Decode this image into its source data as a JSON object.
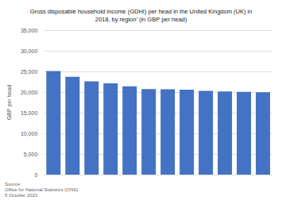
{
  "chart_data": {
    "type": "bar",
    "title": "Gross disposable household income (GDHI) per head in the United Kingdom (UK) in\n2018, by region’ (in GBP per head)",
    "ylabel": "GBP per head",
    "categories": [
      null,
      null,
      null,
      null,
      null,
      null,
      null,
      null,
      null,
      null,
      null,
      null
    ],
    "values": [
      25100,
      23700,
      22600,
      22100,
      21400,
      20700,
      20650,
      20600,
      20300,
      20150,
      20050,
      19950
    ],
    "color": "#4472c4",
    "ylim": [
      0,
      35000
    ],
    "yticks": [
      0,
      {
        "value": 5000,
        "label": "5,000"
      },
      {
        "value": 10000,
        "label": "10,000"
      },
      {
        "value": 15000,
        "label": "15,000"
      },
      {
        "value": 20000,
        "label": "20,000"
      },
      {
        "value": 25000,
        "label": "25,000"
      },
      {
        "value": 30000,
        "label": "30,000"
      },
      {
        "value": 35000,
        "label": "35,000"
      }
    ],
    "grid": true,
    "tick_labels": "y",
    "annotations": [
      "Source:\nOffice for National Statistics (ONS)\n5 October 2021"
    ]
  }
}
